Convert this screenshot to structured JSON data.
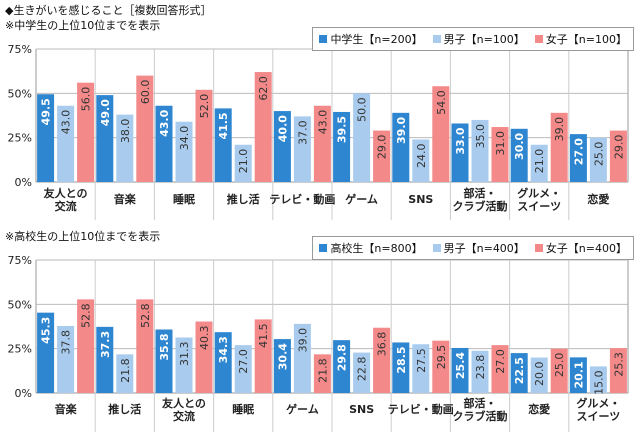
{
  "title": "◆生きがいを感じること［複数回答形式］",
  "colors": {
    "primary": "#2e86d1",
    "boys": "#a9ccee",
    "girls": "#f48989",
    "grid": "#bbbbbb"
  },
  "chart_data": [
    {
      "type": "bar",
      "subtitle": "※中学生の上位10位までを表示",
      "categories": [
        "友人との\n交流",
        "音楽",
        "睡眠",
        "推し活",
        "テレビ・動画",
        "ゲーム",
        "SNS",
        "部活・\nクラブ活動",
        "グルメ・\nスイーツ",
        "恋愛"
      ],
      "series": [
        {
          "name": "中学生【n=200】",
          "values": [
            49.5,
            49.0,
            43.0,
            41.5,
            40.0,
            39.5,
            39.0,
            33.0,
            30.0,
            27.0
          ]
        },
        {
          "name": "男子【n=100】",
          "values": [
            43.0,
            38.0,
            34.0,
            21.0,
            37.0,
            50.0,
            24.0,
            35.0,
            21.0,
            25.0
          ]
        },
        {
          "name": "女子【n=100】",
          "values": [
            56.0,
            60.0,
            52.0,
            62.0,
            43.0,
            29.0,
            54.0,
            31.0,
            39.0,
            29.0
          ]
        }
      ],
      "yticks": [
        "0%",
        "25%",
        "50%",
        "75%"
      ],
      "ylim": [
        0,
        75
      ],
      "grid": true,
      "legend": "top-right"
    },
    {
      "type": "bar",
      "subtitle": "※高校生の上位10位までを表示",
      "categories": [
        "音楽",
        "推し活",
        "友人との\n交流",
        "睡眠",
        "ゲーム",
        "SNS",
        "テレビ・動画",
        "部活・\nクラブ活動",
        "恋愛",
        "グルメ・\nスイーツ"
      ],
      "series": [
        {
          "name": "高校生【n=800】",
          "values": [
            45.3,
            37.3,
            35.8,
            34.3,
            30.4,
            29.8,
            28.5,
            25.4,
            22.5,
            20.1
          ]
        },
        {
          "name": "男子【n=400】",
          "values": [
            37.8,
            21.8,
            31.3,
            27.0,
            39.0,
            22.8,
            27.5,
            23.8,
            20.0,
            15.0
          ]
        },
        {
          "name": "女子【n=400】",
          "values": [
            52.8,
            52.8,
            40.3,
            41.5,
            21.8,
            36.8,
            29.5,
            27.0,
            25.0,
            25.3
          ]
        }
      ],
      "yticks": [
        "0%",
        "25%",
        "50%",
        "75%"
      ],
      "ylim": [
        0,
        75
      ],
      "grid": true,
      "legend": "top-right"
    }
  ]
}
